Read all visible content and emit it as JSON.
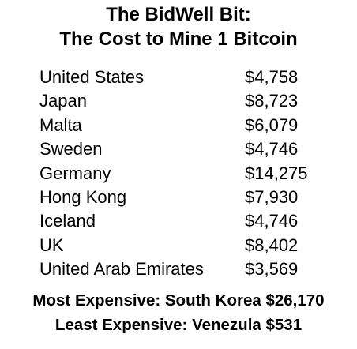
{
  "header": {
    "title": [
      "The BidWell Bit:",
      "The Cost to Mine 1 Bitcoin"
    ]
  },
  "table": {
    "rows": [
      [
        "United States",
        "$4,758"
      ],
      [
        "Japan",
        "$8,723"
      ],
      [
        "Malta",
        "$6,079"
      ],
      [
        "Sweden",
        "$4,746"
      ],
      [
        "Germany",
        "$14,275"
      ],
      [
        "Hong Kong",
        "$7,930"
      ],
      [
        "Iceland",
        "$4,746"
      ],
      [
        "UK",
        "$8,402"
      ],
      [
        "United Arab Emirates",
        "$3,569"
      ]
    ]
  },
  "footer": {
    "lines": [
      "Most Expensive: South Korea $26,170",
      "Least Expensive: Venezula $531"
    ]
  }
}
